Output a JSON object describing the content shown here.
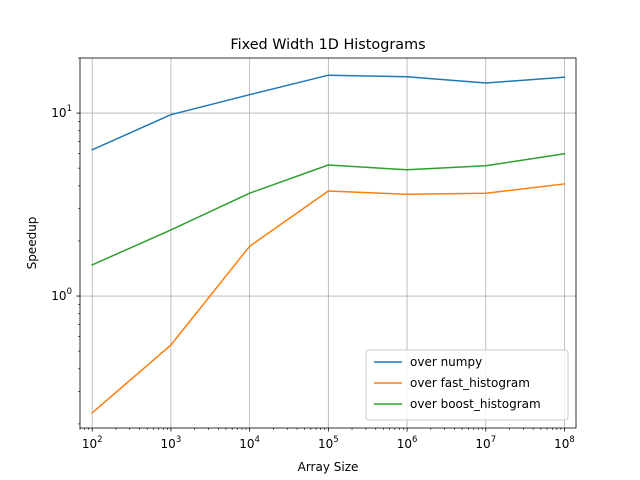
{
  "chart_data": {
    "type": "line",
    "title": "Fixed Width 1D Histograms",
    "xlabel": "Array Size",
    "ylabel": "Speedup",
    "xscale": "log",
    "yscale": "log",
    "x": [
      100,
      1000,
      10000,
      100000,
      1000000,
      10000000,
      100000000
    ],
    "xtick_labels": [
      {
        "base": "10",
        "exp": "2"
      },
      {
        "base": "10",
        "exp": "3"
      },
      {
        "base": "10",
        "exp": "4"
      },
      {
        "base": "10",
        "exp": "5"
      },
      {
        "base": "10",
        "exp": "6"
      },
      {
        "base": "10",
        "exp": "7"
      },
      {
        "base": "10",
        "exp": "8"
      }
    ],
    "ytick_labels": [
      {
        "value": 1,
        "base": "10",
        "exp": "0"
      },
      {
        "value": 10,
        "base": "10",
        "exp": "1"
      }
    ],
    "xlim": [
      70,
      140000000
    ],
    "ylim": [
      0.19,
      20
    ],
    "grid": true,
    "legend_position": "lower-right",
    "series": [
      {
        "name": "over numpy",
        "color": "#1f77b4",
        "values": [
          6.3,
          9.8,
          12.6,
          16.1,
          15.8,
          14.6,
          15.7
        ]
      },
      {
        "name": "over fast_histogram",
        "color": "#ff7f0e",
        "values": [
          0.23,
          0.54,
          1.87,
          3.75,
          3.6,
          3.65,
          4.1
        ]
      },
      {
        "name": "over boost_histogram",
        "color": "#2ca02c",
        "values": [
          1.48,
          2.3,
          3.65,
          5.2,
          4.9,
          5.15,
          6.0
        ]
      }
    ]
  }
}
